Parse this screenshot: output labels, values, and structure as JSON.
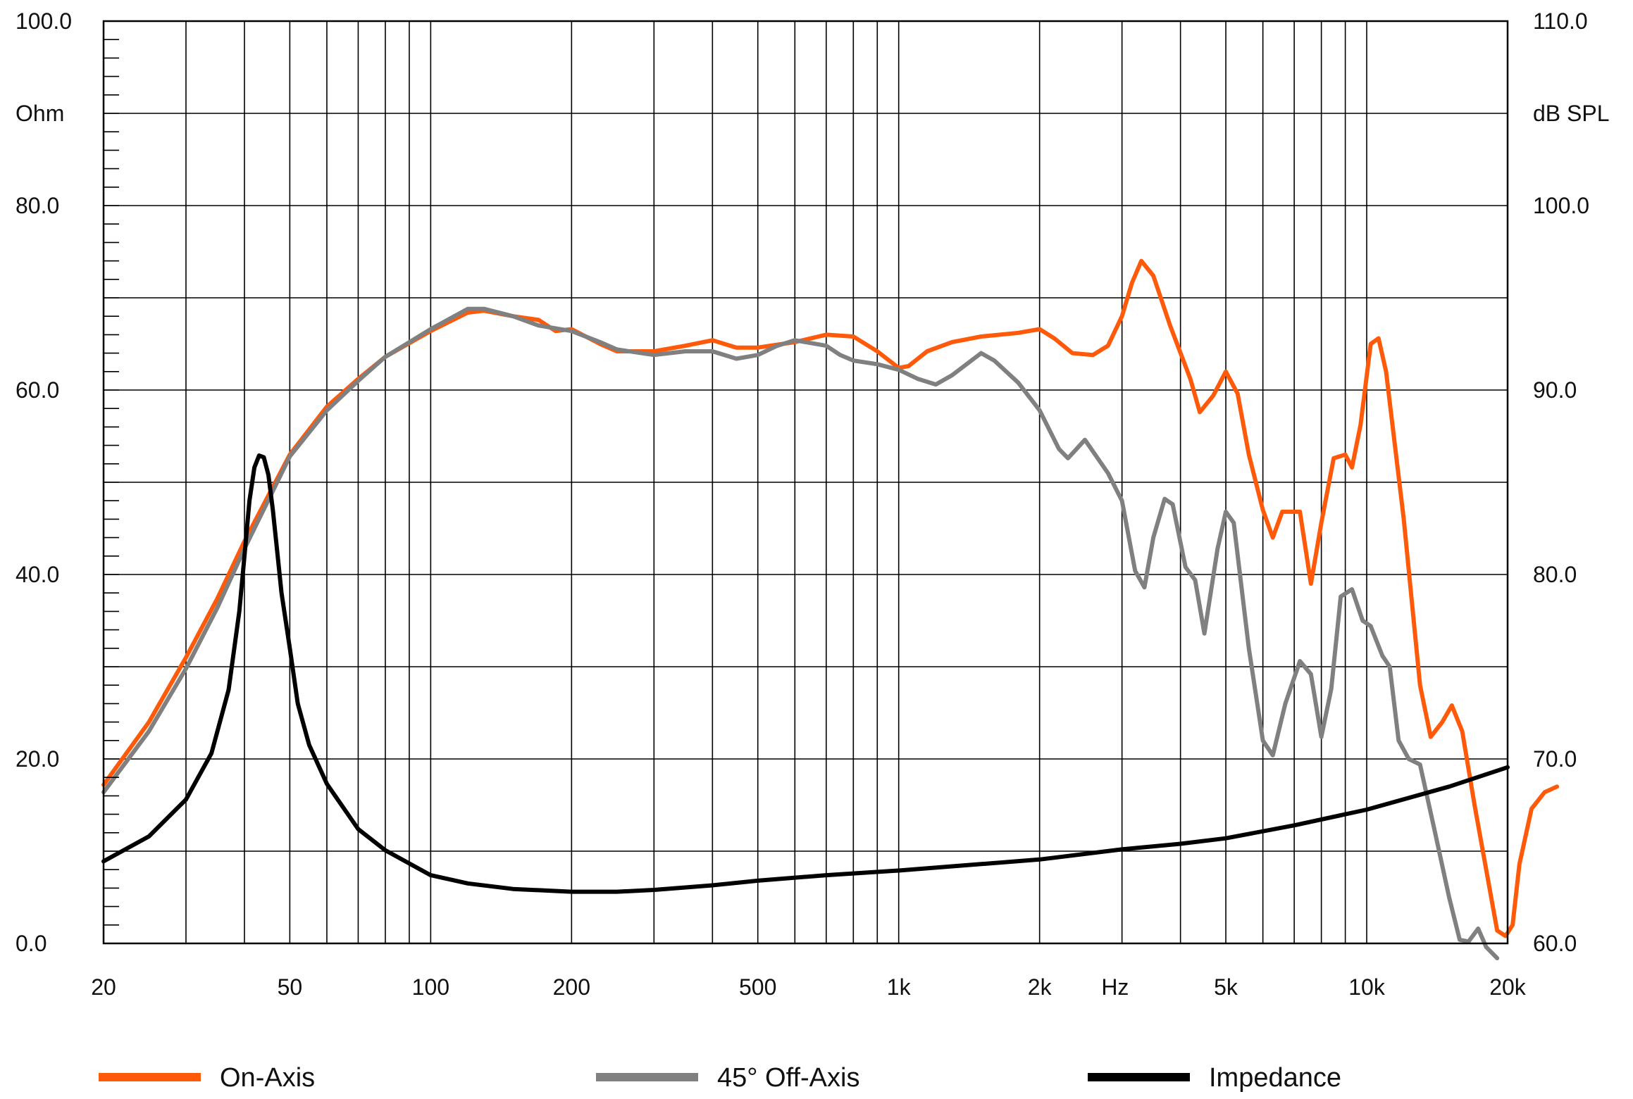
{
  "chart_data": {
    "type": "line",
    "xscale": "log",
    "xlim": [
      20,
      20000
    ],
    "x_ticks": [
      {
        "value": 20,
        "label": "20"
      },
      {
        "value": 50,
        "label": "50"
      },
      {
        "value": 100,
        "label": "100"
      },
      {
        "value": 200,
        "label": "200"
      },
      {
        "value": 500,
        "label": "500"
      },
      {
        "value": 1000,
        "label": "1k"
      },
      {
        "value": 2000,
        "label": "2k"
      },
      {
        "value": 5000,
        "label": "5k"
      },
      {
        "value": 10000,
        "label": "10k"
      },
      {
        "value": 20000,
        "label": "20k"
      }
    ],
    "xlabel": "Hz",
    "xlabel_value": 2900,
    "y_left": {
      "label": "Ohm",
      "lim": [
        0,
        100
      ],
      "major_ticks": [
        0,
        20,
        40,
        60,
        80,
        100
      ],
      "tick_labels": [
        "0.0",
        "20.0",
        "40.0",
        "60.0",
        "80.0",
        "100.0"
      ]
    },
    "y_right": {
      "label": "dB SPL",
      "lim": [
        60,
        110
      ],
      "major_ticks": [
        60,
        70,
        80,
        90,
        100,
        110
      ],
      "tick_labels": [
        "60.0",
        "70.0",
        "80.0",
        "90.0",
        "100.0",
        "110.0"
      ]
    },
    "grid": true,
    "legend_position": "bottom",
    "series": [
      {
        "name": "On-Axis",
        "axis": "right",
        "color": "#ff5a0a",
        "points": [
          [
            20,
            68.6
          ],
          [
            25,
            72.0
          ],
          [
            30,
            75.5
          ],
          [
            35,
            78.7
          ],
          [
            40,
            81.8
          ],
          [
            50,
            86.5
          ],
          [
            60,
            89.1
          ],
          [
            70,
            90.6
          ],
          [
            80,
            91.8
          ],
          [
            100,
            93.2
          ],
          [
            120,
            94.2
          ],
          [
            130,
            94.3
          ],
          [
            150,
            94.0
          ],
          [
            170,
            93.8
          ],
          [
            185,
            93.2
          ],
          [
            200,
            93.3
          ],
          [
            230,
            92.5
          ],
          [
            250,
            92.1
          ],
          [
            300,
            92.1
          ],
          [
            350,
            92.4
          ],
          [
            400,
            92.7
          ],
          [
            450,
            92.3
          ],
          [
            500,
            92.3
          ],
          [
            600,
            92.6
          ],
          [
            700,
            93.0
          ],
          [
            800,
            92.9
          ],
          [
            900,
            92.1
          ],
          [
            1000,
            91.2
          ],
          [
            1050,
            91.3
          ],
          [
            1150,
            92.1
          ],
          [
            1300,
            92.6
          ],
          [
            1500,
            92.9
          ],
          [
            1800,
            93.1
          ],
          [
            2000,
            93.3
          ],
          [
            2150,
            92.8
          ],
          [
            2350,
            92.0
          ],
          [
            2600,
            91.9
          ],
          [
            2800,
            92.4
          ],
          [
            3000,
            94.0
          ],
          [
            3150,
            95.8
          ],
          [
            3300,
            97.0
          ],
          [
            3500,
            96.2
          ],
          [
            3800,
            93.5
          ],
          [
            4200,
            90.6
          ],
          [
            4400,
            88.8
          ],
          [
            4700,
            89.7
          ],
          [
            5000,
            91.0
          ],
          [
            5300,
            89.8
          ],
          [
            5600,
            86.5
          ],
          [
            6000,
            83.5
          ],
          [
            6300,
            82.0
          ],
          [
            6600,
            83.4
          ],
          [
            7200,
            83.4
          ],
          [
            7600,
            79.5
          ],
          [
            8000,
            82.8
          ],
          [
            8500,
            86.3
          ],
          [
            9000,
            86.5
          ],
          [
            9300,
            85.8
          ],
          [
            9700,
            88.1
          ],
          [
            10200,
            92.5
          ],
          [
            10600,
            92.8
          ],
          [
            11000,
            91.0
          ],
          [
            12000,
            83.0
          ],
          [
            13000,
            74.0
          ],
          [
            13700,
            71.2
          ],
          [
            14500,
            72.0
          ],
          [
            15200,
            72.9
          ],
          [
            16000,
            71.5
          ],
          [
            17000,
            67.5
          ],
          [
            18000,
            64.0
          ],
          [
            19000,
            60.7
          ],
          [
            19800,
            60.4
          ],
          [
            20500,
            61.0
          ],
          [
            21200,
            64.3
          ],
          [
            22500,
            67.3
          ],
          [
            24000,
            68.2
          ],
          [
            25500,
            68.5
          ]
        ]
      },
      {
        "name": "45° Off-Axis",
        "axis": "right",
        "color": "#808080",
        "points": [
          [
            20,
            68.2
          ],
          [
            25,
            71.5
          ],
          [
            30,
            74.9
          ],
          [
            35,
            78.2
          ],
          [
            40,
            81.4
          ],
          [
            50,
            86.4
          ],
          [
            60,
            88.9
          ],
          [
            70,
            90.5
          ],
          [
            80,
            91.8
          ],
          [
            100,
            93.3
          ],
          [
            120,
            94.4
          ],
          [
            130,
            94.4
          ],
          [
            150,
            94.0
          ],
          [
            170,
            93.5
          ],
          [
            200,
            93.2
          ],
          [
            230,
            92.6
          ],
          [
            250,
            92.2
          ],
          [
            300,
            91.9
          ],
          [
            350,
            92.1
          ],
          [
            400,
            92.1
          ],
          [
            450,
            91.7
          ],
          [
            500,
            91.9
          ],
          [
            550,
            92.4
          ],
          [
            600,
            92.7
          ],
          [
            700,
            92.4
          ],
          [
            750,
            91.9
          ],
          [
            800,
            91.6
          ],
          [
            900,
            91.4
          ],
          [
            1000,
            91.1
          ],
          [
            1100,
            90.6
          ],
          [
            1200,
            90.3
          ],
          [
            1300,
            90.8
          ],
          [
            1500,
            92.0
          ],
          [
            1600,
            91.6
          ],
          [
            1800,
            90.4
          ],
          [
            2000,
            88.9
          ],
          [
            2200,
            86.8
          ],
          [
            2300,
            86.3
          ],
          [
            2500,
            87.3
          ],
          [
            2800,
            85.5
          ],
          [
            3000,
            84.0
          ],
          [
            3200,
            80.2
          ],
          [
            3350,
            79.3
          ],
          [
            3500,
            82.0
          ],
          [
            3700,
            84.1
          ],
          [
            3850,
            83.8
          ],
          [
            4100,
            80.4
          ],
          [
            4300,
            79.7
          ],
          [
            4500,
            76.8
          ],
          [
            4800,
            81.4
          ],
          [
            5000,
            83.4
          ],
          [
            5200,
            82.8
          ],
          [
            5600,
            76.0
          ],
          [
            6000,
            71.0
          ],
          [
            6300,
            70.2
          ],
          [
            6700,
            73.0
          ],
          [
            7200,
            75.3
          ],
          [
            7600,
            74.6
          ],
          [
            8000,
            71.2
          ],
          [
            8400,
            73.8
          ],
          [
            8800,
            78.8
          ],
          [
            9300,
            79.2
          ],
          [
            9800,
            77.5
          ],
          [
            10200,
            77.2
          ],
          [
            10800,
            75.6
          ],
          [
            11200,
            75.0
          ],
          [
            11700,
            71.0
          ],
          [
            12300,
            70.0
          ],
          [
            13000,
            69.7
          ],
          [
            14000,
            66.0
          ],
          [
            15000,
            62.5
          ],
          [
            15800,
            60.2
          ],
          [
            16500,
            60.1
          ],
          [
            17300,
            60.8
          ],
          [
            18000,
            59.8
          ],
          [
            19000,
            59.2
          ]
        ]
      },
      {
        "name": "Impedance",
        "axis": "left",
        "color": "#000000",
        "points": [
          [
            20,
            8.9
          ],
          [
            25,
            11.6
          ],
          [
            30,
            15.6
          ],
          [
            34,
            20.6
          ],
          [
            37,
            27.5
          ],
          [
            39,
            36.0
          ],
          [
            40,
            42.0
          ],
          [
            41,
            48.0
          ],
          [
            42,
            51.6
          ],
          [
            43,
            52.9
          ],
          [
            44,
            52.7
          ],
          [
            45,
            50.8
          ],
          [
            46,
            47.0
          ],
          [
            47,
            42.5
          ],
          [
            48,
            38.0
          ],
          [
            50,
            32.0
          ],
          [
            52,
            26.0
          ],
          [
            55,
            21.5
          ],
          [
            60,
            17.3
          ],
          [
            70,
            12.4
          ],
          [
            80,
            10.1
          ],
          [
            100,
            7.4
          ],
          [
            120,
            6.5
          ],
          [
            150,
            5.9
          ],
          [
            200,
            5.6
          ],
          [
            250,
            5.6
          ],
          [
            300,
            5.8
          ],
          [
            400,
            6.3
          ],
          [
            500,
            6.8
          ],
          [
            700,
            7.4
          ],
          [
            1000,
            7.9
          ],
          [
            1500,
            8.6
          ],
          [
            2000,
            9.1
          ],
          [
            3000,
            10.2
          ],
          [
            4000,
            10.8
          ],
          [
            5000,
            11.4
          ],
          [
            7000,
            12.8
          ],
          [
            10000,
            14.5
          ],
          [
            15000,
            17.0
          ],
          [
            20000,
            19.1
          ]
        ]
      }
    ]
  }
}
